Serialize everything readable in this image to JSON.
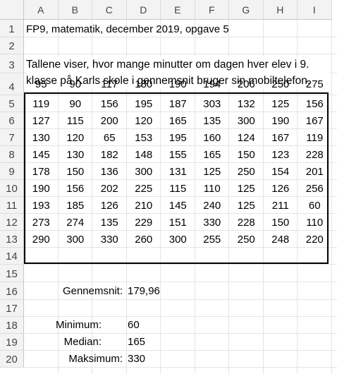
{
  "columns": [
    "A",
    "B",
    "C",
    "D",
    "E",
    "F",
    "G",
    "H",
    "I"
  ],
  "rows": [
    "1",
    "2",
    "3",
    "4",
    "5",
    "6",
    "7",
    "8",
    "9",
    "10",
    "11",
    "12",
    "13",
    "14",
    "15",
    "16",
    "17",
    "18",
    "19",
    "20"
  ],
  "title": "FP9, matematik, december 2019, opgave 5",
  "description": "Tallene viser, hvor mange minutter om dagen hver elev i 9. klasse på Karls skole i gennemsnit bruger sin mobiltelefon.",
  "data_rows": [
    [
      "95",
      "90",
      "117",
      "180",
      "190",
      "194",
      "206",
      "250",
      "275"
    ],
    [
      "119",
      "90",
      "156",
      "195",
      "187",
      "303",
      "132",
      "125",
      "156"
    ],
    [
      "127",
      "115",
      "200",
      "120",
      "165",
      "135",
      "300",
      "190",
      "167"
    ],
    [
      "130",
      "120",
      "65",
      "153",
      "195",
      "160",
      "124",
      "167",
      "119"
    ],
    [
      "145",
      "130",
      "182",
      "148",
      "155",
      "165",
      "150",
      "123",
      "228"
    ],
    [
      "178",
      "150",
      "136",
      "300",
      "131",
      "125",
      "250",
      "154",
      "201"
    ],
    [
      "190",
      "156",
      "202",
      "225",
      "115",
      "110",
      "125",
      "126",
      "256"
    ],
    [
      "193",
      "185",
      "126",
      "210",
      "145",
      "240",
      "125",
      "211",
      "60"
    ],
    [
      "273",
      "274",
      "135",
      "229",
      "151",
      "330",
      "228",
      "150",
      "110"
    ],
    [
      "290",
      "300",
      "330",
      "260",
      "300",
      "255",
      "250",
      "248",
      "220"
    ]
  ],
  "stats": {
    "mean_label": "Gennemsnit:",
    "mean_value": "179,96",
    "min_label": "Minimum:",
    "min_value": "60",
    "median_label": "Median:",
    "median_value": "165",
    "max_label": "Maksimum:",
    "max_value": "330"
  }
}
